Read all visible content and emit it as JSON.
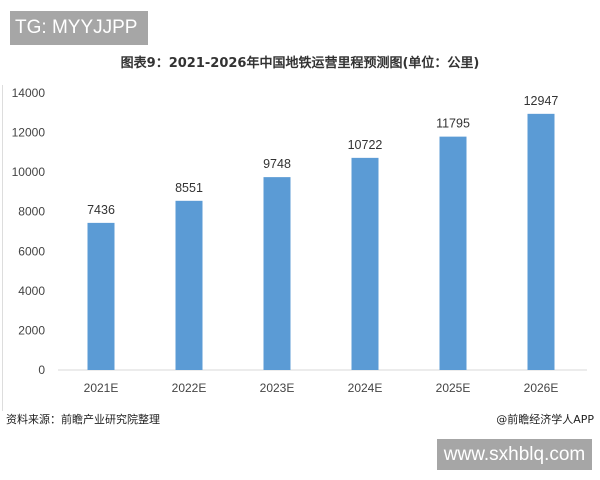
{
  "watermarks": {
    "top": "TG: MYYJJPP",
    "bottom": "www.sxhblq.com"
  },
  "footer": {
    "source": "资料来源：前瞻产业研究院整理",
    "credit": "@前瞻经济学人APP"
  },
  "chart_data": {
    "type": "bar",
    "title": "图表9：2021-2026年中国地铁运营里程预测图(单位：公里)",
    "categories": [
      "2021E",
      "2022E",
      "2023E",
      "2024E",
      "2025E",
      "2026E"
    ],
    "values": [
      7436,
      8551,
      9748,
      10722,
      11795,
      12947
    ],
    "ylim": [
      0,
      14000
    ],
    "yticks": [
      0,
      2000,
      4000,
      6000,
      8000,
      10000,
      12000,
      14000
    ],
    "grid": false,
    "bar_color": "#5b9bd5",
    "data_labels": true
  }
}
